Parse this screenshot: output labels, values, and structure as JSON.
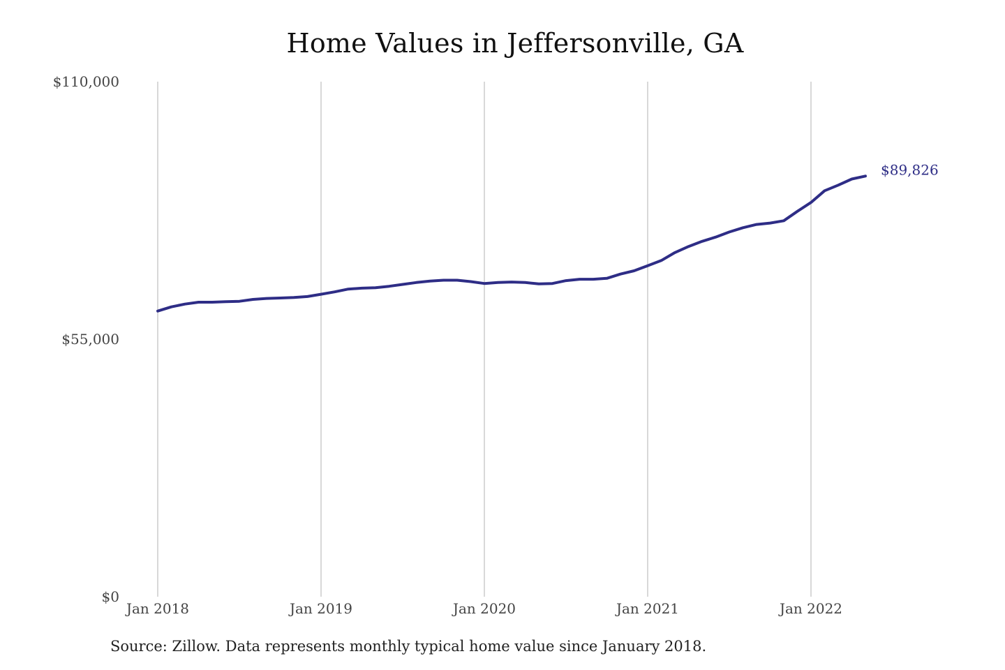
{
  "chart_data": {
    "type": "line",
    "title": "Home Values in Jeffersonville, GA",
    "xlabel": "",
    "ylabel": "",
    "ylim": [
      0,
      110000
    ],
    "y_ticks": [
      {
        "value": 0,
        "label": "$0"
      },
      {
        "value": 55000,
        "label": "$55,000"
      },
      {
        "value": 110000,
        "label": "$110,000"
      }
    ],
    "x_ticks": [
      {
        "value": "2018-01",
        "label": "Jan 2018"
      },
      {
        "value": "2019-01",
        "label": "Jan 2019"
      },
      {
        "value": "2020-01",
        "label": "Jan 2020"
      },
      {
        "value": "2021-01",
        "label": "Jan 2021"
      },
      {
        "value": "2022-01",
        "label": "Jan 2022"
      }
    ],
    "grid": "vertical",
    "legend": "none",
    "series": [
      {
        "color": "#2e2d86",
        "x": [
          "2018-01",
          "2018-02",
          "2018-03",
          "2018-04",
          "2018-05",
          "2018-06",
          "2018-07",
          "2018-08",
          "2018-09",
          "2018-10",
          "2018-11",
          "2018-12",
          "2019-01",
          "2019-02",
          "2019-03",
          "2019-04",
          "2019-05",
          "2019-06",
          "2019-07",
          "2019-08",
          "2019-09",
          "2019-10",
          "2019-11",
          "2019-12",
          "2020-01",
          "2020-02",
          "2020-03",
          "2020-04",
          "2020-05",
          "2020-06",
          "2020-07",
          "2020-08",
          "2020-09",
          "2020-10",
          "2020-11",
          "2020-12",
          "2021-01",
          "2021-02",
          "2021-03",
          "2021-04",
          "2021-05",
          "2021-06",
          "2021-07",
          "2021-08",
          "2021-09",
          "2021-10",
          "2021-11",
          "2021-12",
          "2022-01",
          "2022-02",
          "2022-03",
          "2022-04",
          "2022-05"
        ],
        "values": [
          61000,
          61900,
          62500,
          62900,
          62900,
          63000,
          63100,
          63500,
          63700,
          63800,
          63900,
          64100,
          64600,
          65100,
          65700,
          65900,
          66000,
          66300,
          66700,
          67100,
          67400,
          67600,
          67600,
          67300,
          66900,
          67100,
          67200,
          67100,
          66800,
          66900,
          67500,
          67800,
          67800,
          68000,
          68900,
          69600,
          70700,
          71800,
          73500,
          74800,
          75900,
          76800,
          77900,
          78800,
          79500,
          79800,
          80300,
          82300,
          84200,
          86700,
          87900,
          89200,
          89826
        ]
      }
    ],
    "end_label": "$89,826"
  },
  "source_note": "Source: Zillow. Data represents monthly typical home value since January 2018."
}
